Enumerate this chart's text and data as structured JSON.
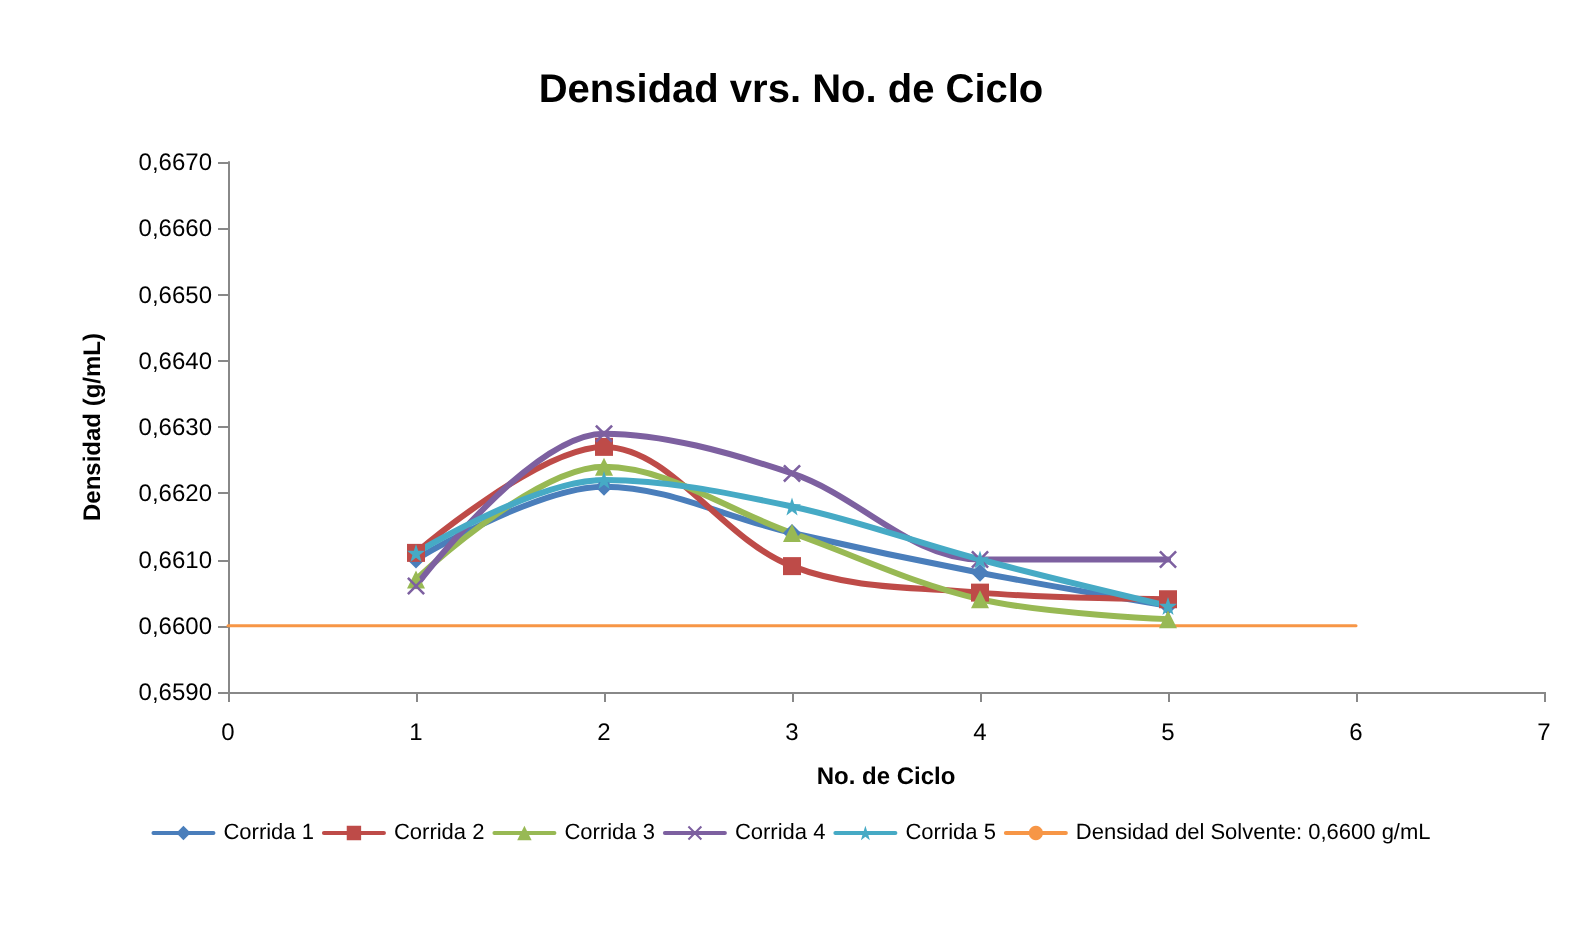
{
  "chart_data": {
    "type": "line",
    "title": "Densidad vrs. No. de Ciclo",
    "xlabel": "No. de Ciclo",
    "ylabel": "Densidad (g/mL)",
    "xlim": [
      0,
      7
    ],
    "xticks": [
      0,
      1,
      2,
      3,
      4,
      5,
      6,
      7
    ],
    "ylim": [
      0.659,
      0.667
    ],
    "yticks": [
      {
        "value": 0.659,
        "label": "0,6590"
      },
      {
        "value": 0.66,
        "label": "0,6600"
      },
      {
        "value": 0.661,
        "label": "0,6610"
      },
      {
        "value": 0.662,
        "label": "0,6620"
      },
      {
        "value": 0.663,
        "label": "0,6630"
      },
      {
        "value": 0.664,
        "label": "0,6640"
      },
      {
        "value": 0.665,
        "label": "0,6650"
      },
      {
        "value": 0.666,
        "label": "0,6660"
      },
      {
        "value": 0.667,
        "label": "0,6670"
      }
    ],
    "grid": false,
    "legend": "bottom",
    "series": [
      {
        "name": "Corrida 1",
        "color": "#4a7ebb",
        "marker": "diamond",
        "x": [
          1,
          2,
          3,
          4,
          5
        ],
        "values": [
          0.661,
          0.6621,
          0.6614,
          0.6608,
          0.6603
        ]
      },
      {
        "name": "Corrida 2",
        "color": "#be4b48",
        "marker": "square",
        "x": [
          1,
          2,
          3,
          4,
          5
        ],
        "values": [
          0.6611,
          0.6627,
          0.6609,
          0.6605,
          0.6604
        ]
      },
      {
        "name": "Corrida 3",
        "color": "#98b954",
        "marker": "triangle",
        "x": [
          1,
          2,
          3,
          4,
          5
        ],
        "values": [
          0.6607,
          0.6624,
          0.6614,
          0.6604,
          0.6601
        ]
      },
      {
        "name": "Corrida 4",
        "color": "#7d60a0",
        "marker": "cross",
        "x": [
          1,
          2,
          3,
          4,
          5
        ],
        "values": [
          0.6606,
          0.6629,
          0.6623,
          0.661,
          0.661
        ]
      },
      {
        "name": "Corrida 5",
        "color": "#46aac5",
        "marker": "star",
        "x": [
          1,
          2,
          3,
          4,
          5
        ],
        "values": [
          0.6611,
          0.6622,
          0.6618,
          0.661,
          0.6603
        ]
      },
      {
        "name": "Densidad del Solvente: 0,6600 g/mL",
        "color": "#f79646",
        "marker": "none",
        "x": [
          0,
          6
        ],
        "values": [
          0.66,
          0.66
        ]
      }
    ]
  }
}
